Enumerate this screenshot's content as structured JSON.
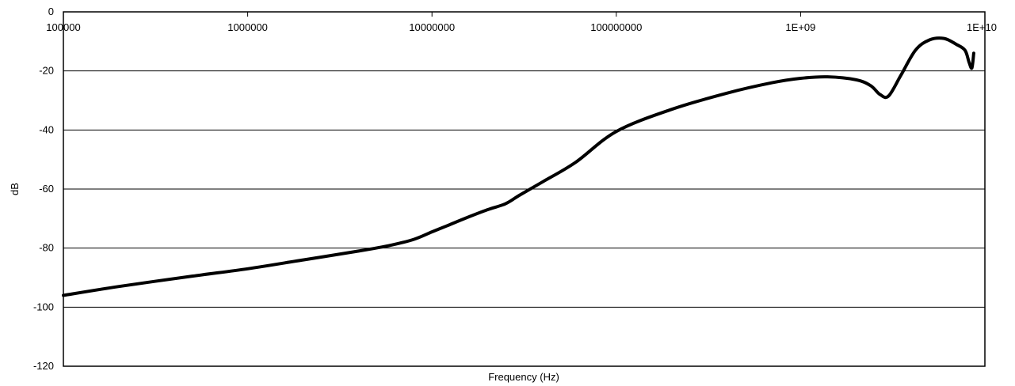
{
  "chart_data": {
    "type": "line",
    "xlabel": "Frequency (Hz)",
    "ylabel": "dB",
    "x_scale": "log",
    "xlim": [
      100000,
      10000000000
    ],
    "ylim": [
      -120,
      0
    ],
    "x_ticks": [
      100000,
      1000000,
      10000000,
      100000000,
      1000000000,
      10000000000
    ],
    "x_tick_labels": [
      "100000",
      "1000000",
      "10000000",
      "100000000",
      "1E+09",
      "1E+10"
    ],
    "y_ticks": [
      0,
      -20,
      -40,
      -60,
      -80,
      -100,
      -120
    ],
    "y_tick_labels": [
      "0",
      "-20",
      "-40",
      "-60",
      "-80",
      "-100",
      "-120"
    ],
    "grid": "horizontal",
    "legend": "none",
    "series": [
      {
        "color": "#000000",
        "x": [
          100000,
          200000,
          500000,
          1000000,
          2000000,
          4000000,
          6000000,
          8000000,
          10000000,
          12000000,
          15000000,
          20000000,
          25000000,
          30000000,
          40000000,
          60000000,
          100000000,
          200000000,
          400000000,
          700000000,
          1000000000,
          1400000000,
          2000000000,
          2400000000,
          2700000000,
          3000000000,
          3500000000,
          4200000000,
          5000000000,
          6000000000,
          7000000000,
          7800000000,
          8200000000,
          8500000000,
          8700000000
        ],
        "values": [
          -96,
          -93,
          -89.5,
          -87,
          -84,
          -81,
          -79,
          -77,
          -74.5,
          -72.5,
          -70,
          -67,
          -65,
          -62,
          -57.5,
          -51,
          -40.5,
          -33,
          -27.5,
          -24,
          -22.5,
          -22,
          -23,
          -25,
          -28,
          -28.5,
          -21.5,
          -13,
          -9.5,
          -9,
          -11,
          -13,
          -17,
          -19,
          -14
        ]
      }
    ]
  }
}
